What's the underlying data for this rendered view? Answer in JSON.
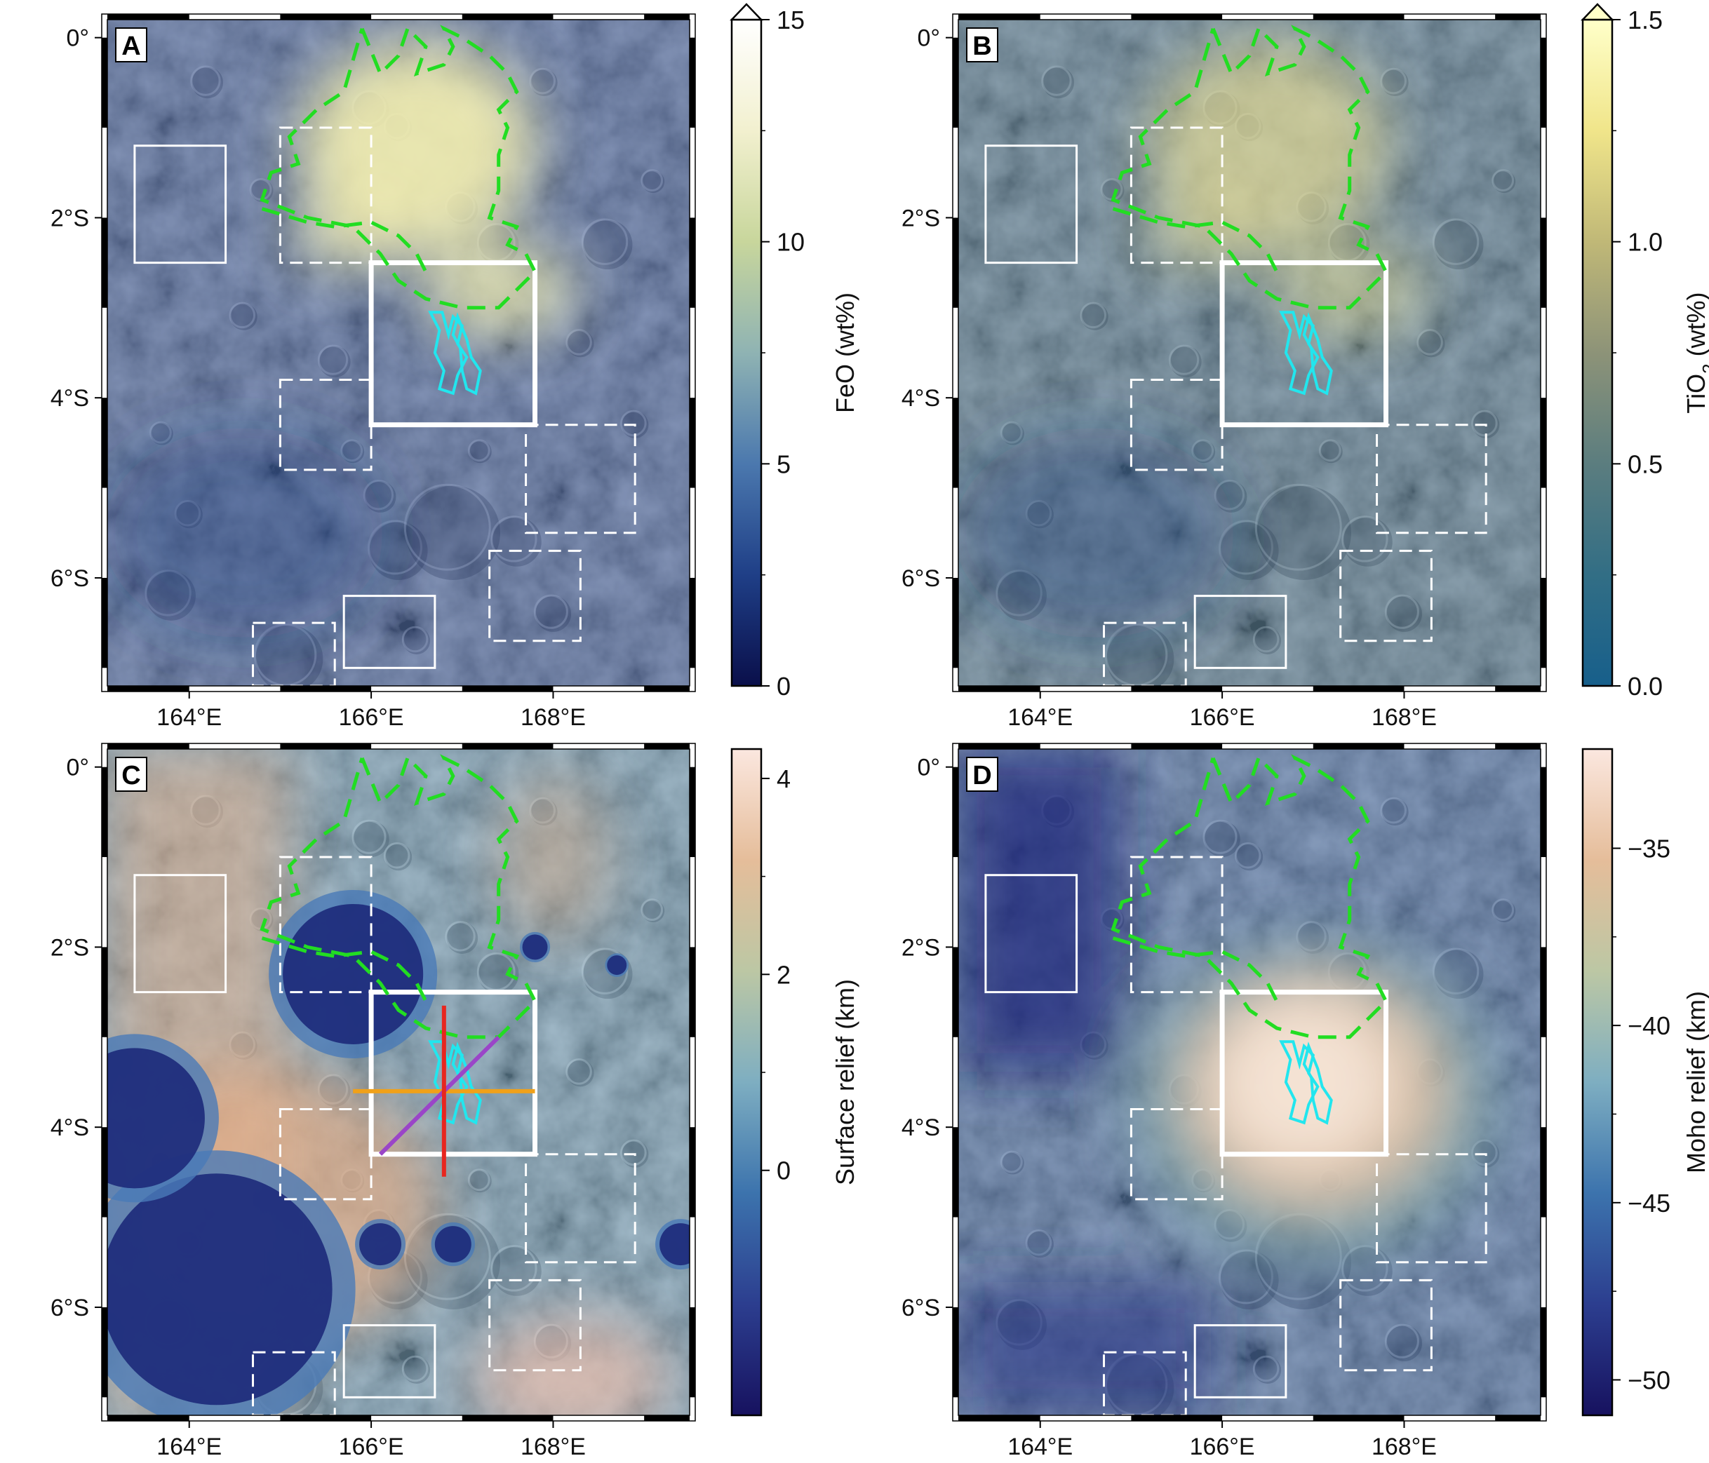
{
  "panels": [
    {
      "id": "A",
      "letter": "A",
      "colorbar": {
        "label": "FeO (wt%)",
        "label_sub": "",
        "ticks": [
          "0",
          "5",
          "10",
          "15"
        ],
        "min": 0,
        "max": 15,
        "extend_top": true,
        "colors": [
          "#0a0f4a",
          "#1f3f87",
          "#4b78ae",
          "#8fb3b3",
          "#c8d69c",
          "#f2f0cf",
          "#ffffff"
        ]
      },
      "tint": "#2c4e96",
      "tint_opacity": 0.45,
      "highlight": "#f4f0b0",
      "show_profiles": false
    },
    {
      "id": "B",
      "letter": "B",
      "colorbar": {
        "label": "TiO",
        "label_sub": "2",
        "label_suffix": " (wt%)",
        "ticks": [
          "0.0",
          "0.5",
          "1.0",
          "1.5"
        ],
        "min": 0,
        "max": 1.5,
        "extend_top": true,
        "colors": [
          "#175f8b",
          "#326e85",
          "#5b7d7f",
          "#8d9378",
          "#c0b877",
          "#f0e58a",
          "#ffffc9"
        ]
      },
      "tint": "#3e6b86",
      "tint_opacity": 0.45,
      "highlight": "#e4dc96",
      "show_profiles": false
    },
    {
      "id": "C",
      "letter": "C",
      "colorbar": {
        "label": "Surface relief (km)",
        "label_sub": "",
        "ticks": [
          "0",
          "2",
          "4"
        ],
        "min": -2.5,
        "max": 4.3,
        "extend_top": false,
        "colors": [
          "#17125f",
          "#2c3e8f",
          "#3c73ad",
          "#7eaec1",
          "#bcc7a4",
          "#e5bd9a",
          "#fbe7df"
        ]
      },
      "tint": "#5b93b5",
      "tint_opacity": 0.4,
      "highlight": "#e6b58d",
      "show_profiles": true
    },
    {
      "id": "D",
      "letter": "D",
      "colorbar": {
        "label": "Moho relief (km)",
        "label_sub": "",
        "ticks": [
          "−50",
          "−45",
          "−40",
          "−35"
        ],
        "min": -51,
        "max": -32.2,
        "extend_top": false,
        "colors": [
          "#17125f",
          "#2c3e8f",
          "#3c73ad",
          "#7eaec1",
          "#bcc7a4",
          "#e5bd9a",
          "#fbe7df"
        ]
      },
      "tint": "#2f5b9e",
      "tint_opacity": 0.45,
      "highlight": "#f6e5d6",
      "show_profiles": false
    }
  ],
  "axes": {
    "x_ticks": [
      {
        "value": 164,
        "label": "164°E"
      },
      {
        "value": 166,
        "label": "166°E"
      },
      {
        "value": 168,
        "label": "168°E"
      }
    ],
    "y_ticks": [
      {
        "value": 0,
        "label": "0°"
      },
      {
        "value": -2,
        "label": "2°S"
      },
      {
        "value": -4,
        "label": "4°S"
      },
      {
        "value": -6,
        "label": "6°S"
      }
    ],
    "lon_range": [
      163.1,
      169.5
    ],
    "lat_range": [
      -7.2,
      0.2
    ]
  },
  "colors": {
    "outline": "#22dd22",
    "cyan_unit": "#22e6ee",
    "box": "#ffffff",
    "profile_ns": "#e8261f",
    "profile_ew": "#f0a11a",
    "profile_diag": "#9a45c8"
  }
}
